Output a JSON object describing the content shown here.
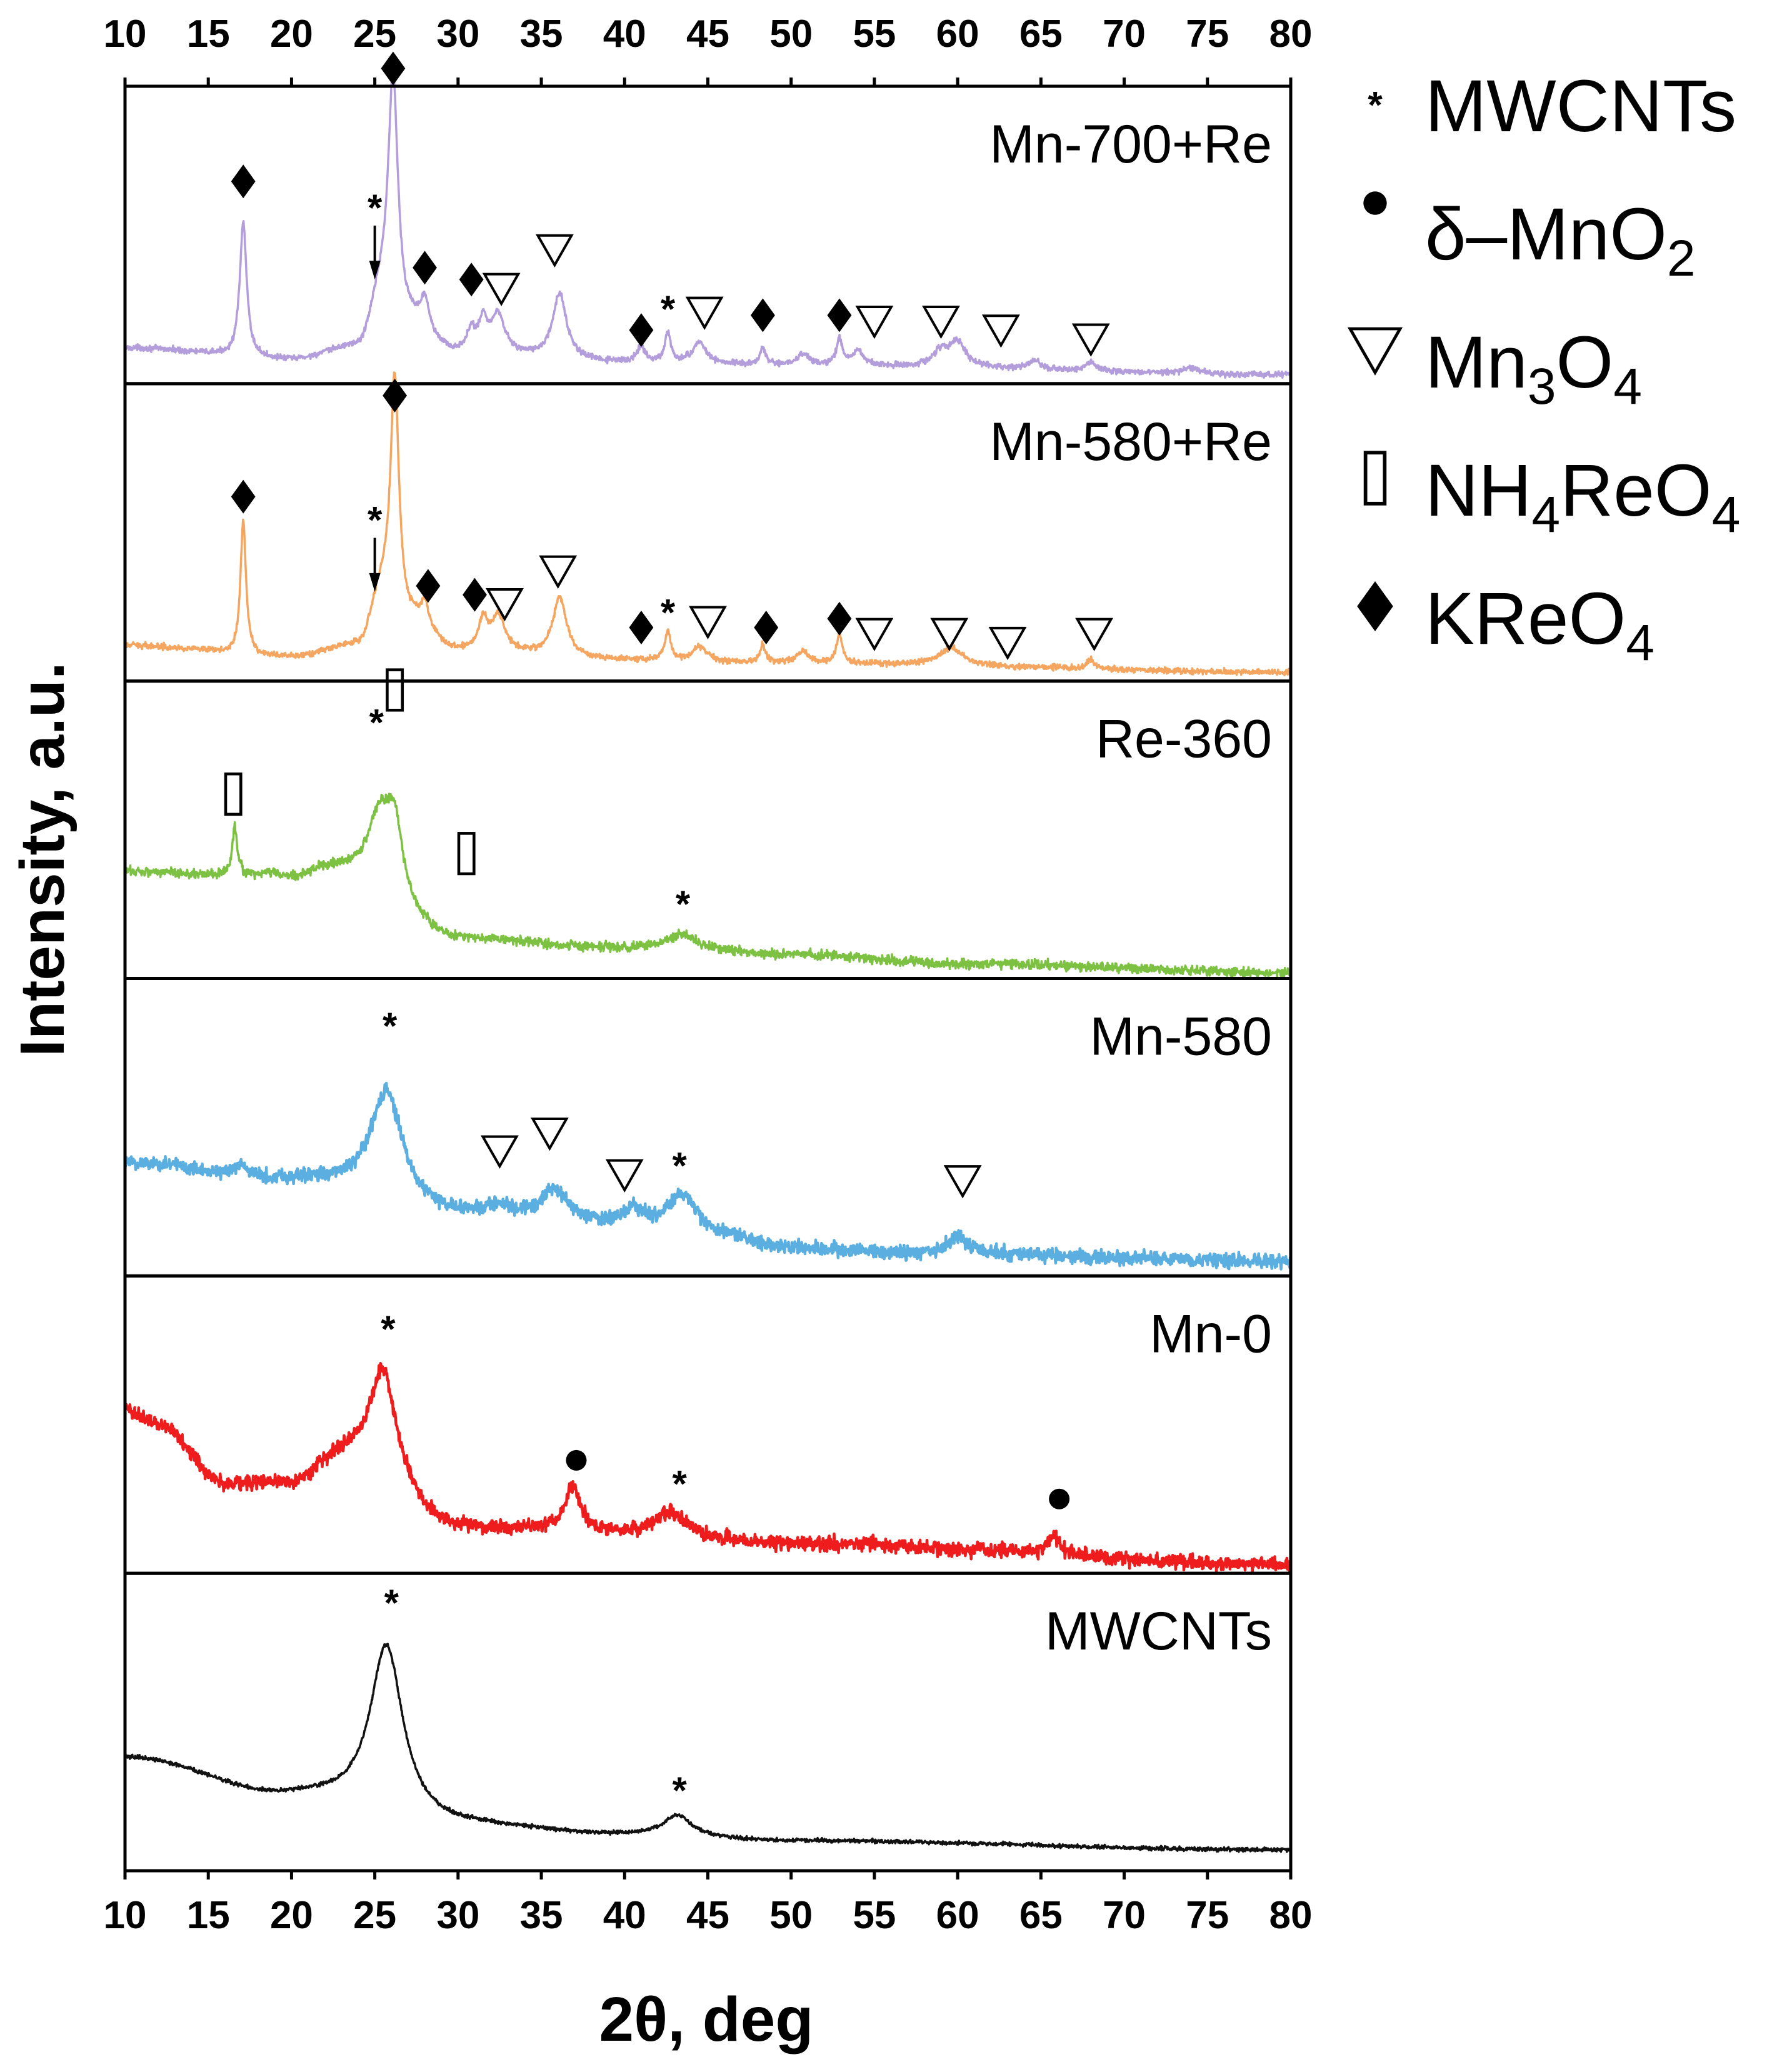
{
  "chart_data": {
    "type": "line",
    "xlabel": "2θ, deg",
    "ylabel": "Intensity, a.u.",
    "xlim": [
      10,
      80
    ],
    "xticks": [
      10,
      15,
      20,
      25,
      30,
      35,
      40,
      45,
      50,
      55,
      60,
      65,
      70,
      75,
      80
    ],
    "series": [
      {
        "name": "Mn-700+Re",
        "color": "#b39ddb",
        "noise": 0.006,
        "baseline": [
          [
            10,
            0.12
          ],
          [
            20,
            0.08
          ],
          [
            24,
            0.12
          ],
          [
            25.5,
            0.3
          ],
          [
            27,
            0.2
          ],
          [
            30,
            0.1
          ],
          [
            40,
            0.07
          ],
          [
            50,
            0.06
          ],
          [
            80,
            0.03
          ]
        ],
        "peaks": [
          [
            17.1,
            0.45,
            0.25
          ],
          [
            26.1,
            0.78,
            0.35
          ],
          [
            28,
            0.1,
            0.3
          ],
          [
            30.8,
            0.07,
            0.3
          ],
          [
            31.5,
            0.1,
            0.3
          ],
          [
            32.4,
            0.13,
            0.5
          ],
          [
            36.1,
            0.22,
            0.5
          ],
          [
            41,
            0.05,
            0.3
          ],
          [
            42.6,
            0.1,
            0.2
          ],
          [
            44.5,
            0.07,
            0.5
          ],
          [
            48.3,
            0.06,
            0.2
          ],
          [
            50.7,
            0.04,
            0.4
          ],
          [
            52.9,
            0.09,
            0.2
          ],
          [
            54,
            0.05,
            0.4
          ],
          [
            59,
            0.05,
            0.6
          ],
          [
            60,
            0.08,
            0.6
          ],
          [
            64.6,
            0.03,
            0.5
          ],
          [
            68,
            0.03,
            0.4
          ],
          [
            74,
            0.02,
            0.6
          ]
        ],
        "markers": [
          {
            "x": 17.1,
            "y": 0.68,
            "symbol": "diamond"
          },
          {
            "x": 25,
            "y": 0.62,
            "symbol": "star-arrow",
            "arrow_to": 0.35
          },
          {
            "x": 26.1,
            "y": 1.06,
            "symbol": "diamond"
          },
          {
            "x": 28,
            "y": 0.39,
            "symbol": "diamond"
          },
          {
            "x": 30.8,
            "y": 0.35,
            "symbol": "diamond"
          },
          {
            "x": 32.6,
            "y": 0.32,
            "symbol": "triangle"
          },
          {
            "x": 35.8,
            "y": 0.45,
            "symbol": "triangle"
          },
          {
            "x": 41,
            "y": 0.18,
            "symbol": "diamond"
          },
          {
            "x": 42.6,
            "y": 0.25,
            "symbol": "star"
          },
          {
            "x": 44.8,
            "y": 0.24,
            "symbol": "triangle"
          },
          {
            "x": 48.3,
            "y": 0.23,
            "symbol": "diamond"
          },
          {
            "x": 52.9,
            "y": 0.23,
            "symbol": "diamond"
          },
          {
            "x": 55,
            "y": 0.21,
            "symbol": "triangle"
          },
          {
            "x": 59,
            "y": 0.21,
            "symbol": "triangle"
          },
          {
            "x": 62.6,
            "y": 0.18,
            "symbol": "triangle"
          },
          {
            "x": 68,
            "y": 0.15,
            "symbol": "triangle"
          }
        ]
      },
      {
        "name": "Mn-580+Re",
        "color": "#f4a660",
        "noise": 0.006,
        "baseline": [
          [
            10,
            0.12
          ],
          [
            20,
            0.08
          ],
          [
            24,
            0.12
          ],
          [
            25.5,
            0.3
          ],
          [
            27,
            0.2
          ],
          [
            30,
            0.1
          ],
          [
            40,
            0.07
          ],
          [
            50,
            0.06
          ],
          [
            80,
            0.03
          ]
        ],
        "peaks": [
          [
            17.1,
            0.45,
            0.2
          ],
          [
            26.2,
            0.78,
            0.3
          ],
          [
            28,
            0.08,
            0.3
          ],
          [
            31.5,
            0.1,
            0.3
          ],
          [
            32.4,
            0.12,
            0.5
          ],
          [
            36.1,
            0.2,
            0.5
          ],
          [
            42.6,
            0.1,
            0.2
          ],
          [
            44.5,
            0.05,
            0.5
          ],
          [
            48.3,
            0.06,
            0.2
          ],
          [
            50.7,
            0.04,
            0.4
          ],
          [
            52.9,
            0.1,
            0.2
          ],
          [
            59.6,
            0.06,
            0.8
          ],
          [
            68,
            0.03,
            0.3
          ]
        ],
        "markers": [
          {
            "x": 17.1,
            "y": 0.62,
            "symbol": "diamond"
          },
          {
            "x": 25,
            "y": 0.57,
            "symbol": "star-arrow",
            "arrow_to": 0.3
          },
          {
            "x": 26.2,
            "y": 0.96,
            "symbol": "diamond"
          },
          {
            "x": 28.2,
            "y": 0.32,
            "symbol": "diamond"
          },
          {
            "x": 31,
            "y": 0.29,
            "symbol": "diamond"
          },
          {
            "x": 32.8,
            "y": 0.26,
            "symbol": "triangle"
          },
          {
            "x": 36,
            "y": 0.37,
            "symbol": "triangle"
          },
          {
            "x": 41,
            "y": 0.18,
            "symbol": "diamond"
          },
          {
            "x": 42.6,
            "y": 0.23,
            "symbol": "star"
          },
          {
            "x": 45,
            "y": 0.2,
            "symbol": "triangle"
          },
          {
            "x": 48.5,
            "y": 0.18,
            "symbol": "diamond"
          },
          {
            "x": 52.9,
            "y": 0.21,
            "symbol": "diamond"
          },
          {
            "x": 55,
            "y": 0.16,
            "symbol": "triangle"
          },
          {
            "x": 59.5,
            "y": 0.16,
            "symbol": "triangle"
          },
          {
            "x": 63,
            "y": 0.13,
            "symbol": "triangle"
          },
          {
            "x": 68.2,
            "y": 0.16,
            "symbol": "triangle"
          }
        ]
      },
      {
        "name": "Re-360",
        "color": "#7cc142",
        "noise": 0.01,
        "baseline": [
          [
            10,
            0.36
          ],
          [
            20,
            0.33
          ],
          [
            22,
            0.36
          ],
          [
            30,
            0.13
          ],
          [
            40,
            0.1
          ],
          [
            50,
            0.08
          ],
          [
            60,
            0.05
          ],
          [
            80,
            0.02
          ]
        ],
        "peaks": [
          [
            16.6,
            0.16,
            0.2
          ],
          [
            18.7,
            0.02,
            0.8
          ],
          [
            25.3,
            0.25,
            0.9
          ],
          [
            26.2,
            0.23,
            0.6
          ],
          [
            43.5,
            0.05,
            1.2
          ]
        ],
        "markers": [
          {
            "x": 26.2,
            "y": 0.97,
            "symbol": "rect"
          },
          {
            "x": 25.1,
            "y": 0.86,
            "symbol": "star"
          },
          {
            "x": 16.5,
            "y": 0.62,
            "symbol": "rect"
          },
          {
            "x": 30.5,
            "y": 0.42,
            "symbol": "rect"
          },
          {
            "x": 43.5,
            "y": 0.25,
            "symbol": "star"
          }
        ]
      },
      {
        "name": "Mn-580",
        "color": "#5aaee0",
        "noise": 0.015,
        "baseline": [
          [
            10,
            0.38
          ],
          [
            20,
            0.32
          ],
          [
            30,
            0.2
          ],
          [
            40,
            0.17
          ],
          [
            50,
            0.09
          ],
          [
            60,
            0.07
          ],
          [
            80,
            0.05
          ]
        ],
        "peaks": [
          [
            17,
            0.03,
            0.5
          ],
          [
            25.7,
            0.37,
            1.2
          ],
          [
            32.5,
            0.03,
            0.8
          ],
          [
            35.8,
            0.1,
            1.0
          ],
          [
            40.6,
            0.05,
            0.5
          ],
          [
            43.5,
            0.12,
            1.0
          ],
          [
            47,
            0.02,
            1.0
          ],
          [
            60,
            0.06,
            0.8
          ]
        ],
        "markers": [
          {
            "x": 25.9,
            "y": 0.84,
            "symbol": "star"
          },
          {
            "x": 32.5,
            "y": 0.42,
            "symbol": "triangle"
          },
          {
            "x": 35.5,
            "y": 0.48,
            "symbol": "triangle"
          },
          {
            "x": 40,
            "y": 0.34,
            "symbol": "triangle"
          },
          {
            "x": 43.3,
            "y": 0.37,
            "symbol": "star"
          },
          {
            "x": 60.3,
            "y": 0.32,
            "symbol": "triangle"
          }
        ]
      },
      {
        "name": "Mn-0",
        "color": "#ee1c1c",
        "noise": 0.015,
        "baseline": [
          [
            10,
            0.55
          ],
          [
            12,
            0.5
          ],
          [
            16,
            0.3
          ],
          [
            20,
            0.3
          ],
          [
            23,
            0.38
          ],
          [
            30,
            0.15
          ],
          [
            40,
            0.13
          ],
          [
            50,
            0.1
          ],
          [
            80,
            0.03
          ]
        ],
        "peaks": [
          [
            25.5,
            0.37,
            1.0
          ],
          [
            36.9,
            0.15,
            0.6
          ],
          [
            42.8,
            0.08,
            1.1
          ],
          [
            65.8,
            0.06,
            0.5
          ]
        ],
        "markers": [
          {
            "x": 25.8,
            "y": 0.82,
            "symbol": "star"
          },
          {
            "x": 37.1,
            "y": 0.38,
            "symbol": "circle"
          },
          {
            "x": 43.3,
            "y": 0.3,
            "symbol": "star"
          },
          {
            "x": 66.1,
            "y": 0.25,
            "symbol": "circle"
          }
        ]
      },
      {
        "name": "MWCNTs",
        "color": "#111111",
        "noise": 0.004,
        "baseline": [
          [
            10,
            0.38
          ],
          [
            20,
            0.25
          ],
          [
            30,
            0.15
          ],
          [
            40,
            0.12
          ],
          [
            50,
            0.1
          ],
          [
            80,
            0.07
          ]
        ],
        "peaks": [
          [
            25.7,
            0.57,
            1.2
          ],
          [
            43.2,
            0.07,
            1.0
          ]
        ],
        "markers": [
          {
            "x": 26,
            "y": 0.9,
            "symbol": "star"
          },
          {
            "x": 43.3,
            "y": 0.27,
            "symbol": "star"
          }
        ]
      }
    ],
    "legend": [
      {
        "symbol": "star",
        "label": "MWCNTs"
      },
      {
        "symbol": "circle",
        "label": "δ–MnO",
        "sub": "2",
        "label2": ""
      },
      {
        "symbol": "triangle",
        "label": "Mn",
        "sub": "3",
        "label2": "O",
        "sub2": "4"
      },
      {
        "symbol": "rect",
        "label": "NH",
        "sub": "4",
        "label2": "ReO",
        "sub2": "4"
      },
      {
        "symbol": "diamond",
        "label": "KReO",
        "sub": "4",
        "label2": ""
      }
    ]
  }
}
